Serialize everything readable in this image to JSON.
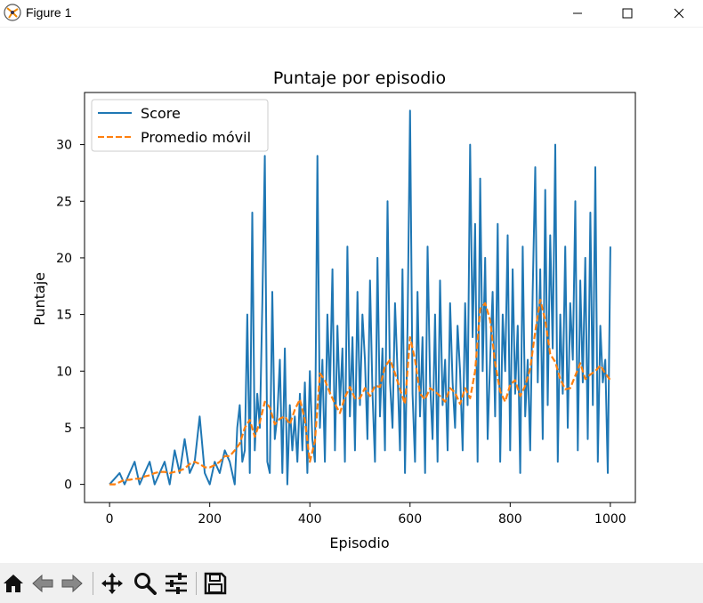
{
  "window": {
    "title": "Figure 1",
    "icons": [
      "app-icon",
      "minimize-icon",
      "maximize-icon",
      "close-icon"
    ]
  },
  "toolbar": {
    "icons": [
      "home-icon",
      "back-icon",
      "forward-icon",
      "pan-icon",
      "zoom-icon",
      "configure-subplots-icon",
      "save-icon"
    ]
  },
  "colors": {
    "score": "#1f77b4",
    "avg": "#ff7f0e"
  },
  "chart_data": {
    "type": "line",
    "title": "Puntaje por episodio",
    "xlabel": "Episodio",
    "ylabel": "Puntaje",
    "xlim": [
      -50,
      1050
    ],
    "ylim": [
      -1.6,
      34.6
    ],
    "xticks": [
      0,
      200,
      400,
      600,
      800,
      1000
    ],
    "yticks": [
      0,
      5,
      10,
      15,
      20,
      25,
      30
    ],
    "legend": {
      "position": "top-left",
      "entries": [
        "Score",
        "Promedio móvil"
      ]
    },
    "grid": false,
    "series": [
      {
        "name": "Score",
        "style": "solid",
        "x": [
          0,
          20,
          30,
          40,
          50,
          60,
          70,
          80,
          90,
          100,
          110,
          120,
          130,
          140,
          150,
          160,
          170,
          180,
          190,
          200,
          210,
          220,
          230,
          240,
          250,
          255,
          260,
          265,
          270,
          275,
          280,
          285,
          290,
          295,
          300,
          305,
          310,
          315,
          320,
          325,
          330,
          335,
          340,
          345,
          350,
          355,
          360,
          365,
          370,
          375,
          380,
          385,
          390,
          395,
          400,
          405,
          410,
          415,
          420,
          425,
          430,
          435,
          440,
          445,
          450,
          455,
          460,
          465,
          470,
          475,
          480,
          485,
          490,
          495,
          500,
          505,
          510,
          515,
          520,
          525,
          530,
          535,
          540,
          545,
          550,
          555,
          560,
          565,
          570,
          575,
          580,
          585,
          590,
          595,
          600,
          605,
          610,
          615,
          620,
          625,
          630,
          635,
          640,
          645,
          650,
          655,
          660,
          665,
          670,
          675,
          680,
          685,
          690,
          695,
          700,
          705,
          710,
          715,
          720,
          725,
          730,
          735,
          740,
          745,
          750,
          755,
          760,
          765,
          770,
          775,
          780,
          785,
          790,
          795,
          800,
          805,
          810,
          815,
          820,
          825,
          830,
          835,
          840,
          845,
          850,
          855,
          860,
          865,
          870,
          875,
          880,
          885,
          890,
          895,
          900,
          905,
          910,
          915,
          920,
          925,
          930,
          935,
          940,
          945,
          950,
          955,
          960,
          965,
          970,
          975,
          980,
          985,
          990,
          995,
          1000
        ],
        "y": [
          0,
          1,
          0,
          1,
          2,
          0,
          1,
          2,
          0,
          1,
          2,
          0,
          3,
          1,
          4,
          1,
          2,
          6,
          1,
          0,
          2,
          1,
          3,
          2,
          0,
          5,
          7,
          2,
          3,
          15,
          1,
          24,
          3,
          8,
          5,
          16,
          29,
          2,
          1,
          17,
          4,
          6,
          11,
          1,
          12,
          0,
          7,
          3,
          6,
          2,
          8,
          3,
          9,
          1,
          10,
          4,
          2,
          29,
          5,
          11,
          2,
          15,
          8,
          19,
          3,
          14,
          7,
          12,
          2,
          21,
          6,
          13,
          3,
          17,
          7,
          15,
          11,
          4,
          18,
          8,
          2,
          20,
          6,
          12,
          3,
          25,
          9,
          5,
          16,
          10,
          3,
          19,
          1,
          14,
          33,
          8,
          2,
          17,
          6,
          13,
          1,
          21,
          9,
          4,
          15,
          2,
          18,
          7,
          11,
          3,
          16,
          9,
          5,
          14,
          10,
          3,
          16,
          7,
          30,
          13,
          23,
          2,
          27,
          10,
          20,
          4,
          11,
          17,
          6,
          23,
          2,
          15,
          10,
          22,
          3,
          19,
          8,
          14,
          1,
          21,
          6,
          11,
          3,
          17,
          28,
          9,
          19,
          4,
          26,
          7,
          22,
          12,
          30,
          2,
          15,
          8,
          21,
          5,
          16,
          11,
          25,
          3,
          18,
          9,
          20,
          4,
          24,
          7,
          28,
          2,
          14,
          9,
          11,
          1,
          21
        ]
      },
      {
        "name": "Promedio móvil",
        "style": "dashed",
        "x": [
          0,
          10,
          20,
          30,
          40,
          50,
          60,
          70,
          80,
          90,
          100,
          110,
          120,
          130,
          140,
          150,
          160,
          170,
          180,
          190,
          200,
          210,
          220,
          230,
          240,
          250,
          260,
          270,
          280,
          290,
          300,
          310,
          320,
          330,
          340,
          350,
          360,
          370,
          380,
          390,
          400,
          410,
          420,
          430,
          440,
          450,
          460,
          470,
          480,
          490,
          500,
          510,
          520,
          530,
          540,
          550,
          560,
          570,
          580,
          590,
          600,
          610,
          620,
          630,
          640,
          650,
          660,
          670,
          680,
          690,
          700,
          710,
          720,
          730,
          740,
          750,
          760,
          770,
          780,
          790,
          800,
          810,
          820,
          830,
          840,
          850,
          860,
          870,
          880,
          890,
          900,
          910,
          920,
          930,
          940,
          950,
          960,
          970,
          980,
          990,
          1000
        ],
        "y": [
          0,
          0,
          0.2,
          0.4,
          0.4,
          0.5,
          0.5,
          0.7,
          0.8,
          1.0,
          1.1,
          1.1,
          1.0,
          1.1,
          1.2,
          1.4,
          1.8,
          2.0,
          1.8,
          1.5,
          1.5,
          1.7,
          2.0,
          2.5,
          2.5,
          3.0,
          3.6,
          5.0,
          5.7,
          4.2,
          5.5,
          7.3,
          6.8,
          5.3,
          5.8,
          6.0,
          5.3,
          6.6,
          7.5,
          5.7,
          2.0,
          3.8,
          9.8,
          9.2,
          8.1,
          7.1,
          6.3,
          7.7,
          8.6,
          7.6,
          7.6,
          8.5,
          7.8,
          8.7,
          8.6,
          10.4,
          11.0,
          9.8,
          8.4,
          7.1,
          13.0,
          11.0,
          8.0,
          7.5,
          8.5,
          8.2,
          7.8,
          7.3,
          8.5,
          8.1,
          7.1,
          8.5,
          7.6,
          10.0,
          15.5,
          16.0,
          14.5,
          10.7,
          8.2,
          7.3,
          8.8,
          9.2,
          7.8,
          8.7,
          10.2,
          13.5,
          16.3,
          14.5,
          11.5,
          10.8,
          9.3,
          8.4,
          8.5,
          9.6,
          10.7,
          9.3,
          9.7,
          10.0,
          10.5,
          9.8,
          9.2
        ]
      }
    ]
  }
}
